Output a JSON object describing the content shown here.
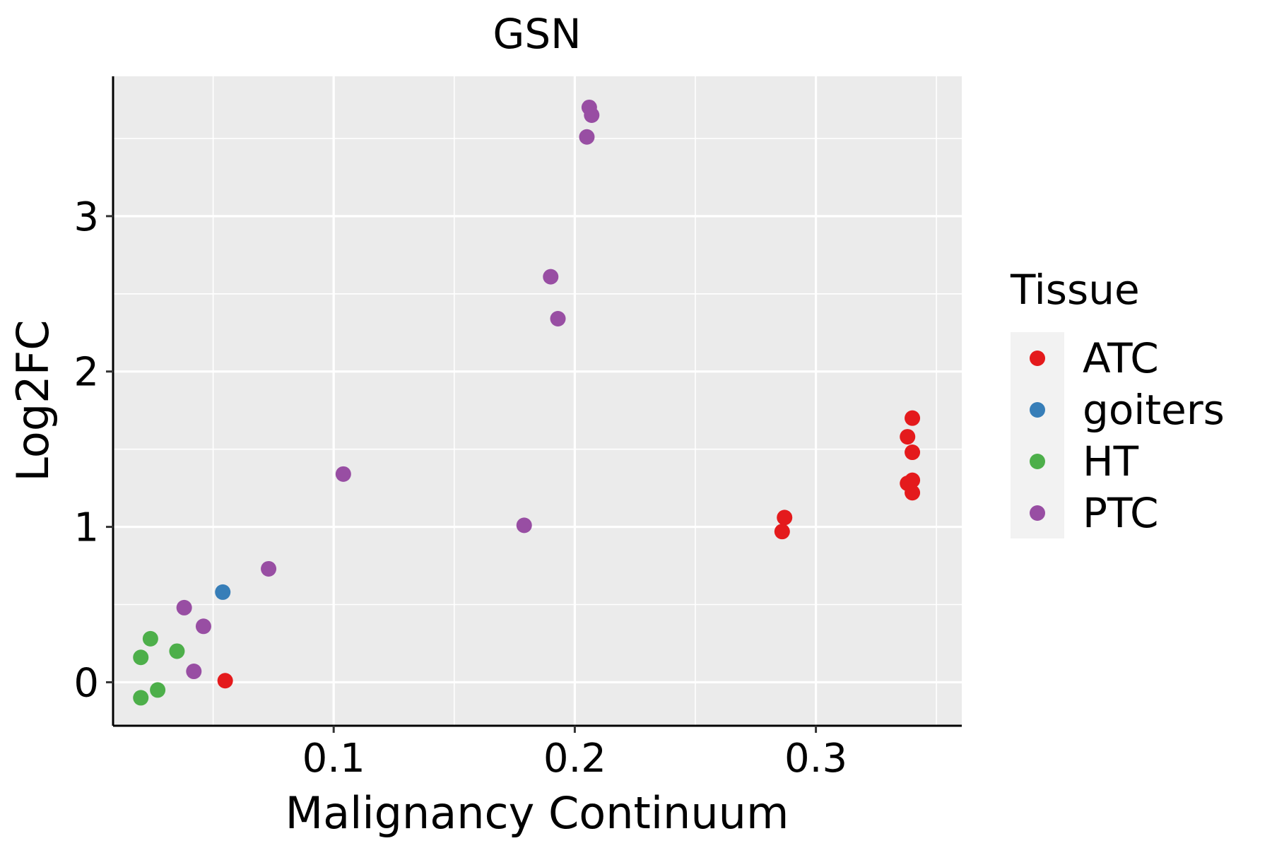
{
  "chart_data": {
    "type": "scatter",
    "title": "GSN",
    "xlabel": "Malignancy Continuum",
    "ylabel": "Log2FC",
    "xlim": [
      0.0085,
      0.3605
    ],
    "ylim": [
      -0.28,
      3.9
    ],
    "x_ticks": [
      0.1,
      0.2,
      0.3
    ],
    "x_tick_labels": [
      "0.1",
      "0.2",
      "0.3"
    ],
    "y_ticks": [
      0,
      1,
      2,
      3
    ],
    "y_tick_labels": [
      "0",
      "1",
      "2",
      "3"
    ],
    "x_minor": [
      0.05,
      0.15,
      0.25,
      0.35
    ],
    "y_minor": [
      0.5,
      1.5,
      2.5,
      3.5
    ],
    "grid": true,
    "legend": {
      "title": "Tissue",
      "position": "right",
      "entries": [
        {
          "name": "ATC",
          "color": "#E41A1C"
        },
        {
          "name": "goiters",
          "color": "#377EB8"
        },
        {
          "name": "HT",
          "color": "#4DAF4A"
        },
        {
          "name": "PTC",
          "color": "#984EA3"
        }
      ]
    },
    "series": [
      {
        "name": "ATC",
        "color": "#E41A1C",
        "points": [
          {
            "x": 0.055,
            "y": 0.01
          },
          {
            "x": 0.287,
            "y": 1.06
          },
          {
            "x": 0.286,
            "y": 0.97
          },
          {
            "x": 0.34,
            "y": 1.7
          },
          {
            "x": 0.338,
            "y": 1.58
          },
          {
            "x": 0.34,
            "y": 1.48
          },
          {
            "x": 0.34,
            "y": 1.3
          },
          {
            "x": 0.338,
            "y": 1.28
          },
          {
            "x": 0.34,
            "y": 1.22
          }
        ]
      },
      {
        "name": "goiters",
        "color": "#377EB8",
        "points": [
          {
            "x": 0.054,
            "y": 0.58
          }
        ]
      },
      {
        "name": "HT",
        "color": "#4DAF4A",
        "points": [
          {
            "x": 0.024,
            "y": 0.28
          },
          {
            "x": 0.02,
            "y": 0.16
          },
          {
            "x": 0.035,
            "y": 0.2
          },
          {
            "x": 0.027,
            "y": -0.05
          },
          {
            "x": 0.02,
            "y": -0.1
          }
        ]
      },
      {
        "name": "PTC",
        "color": "#984EA3",
        "points": [
          {
            "x": 0.206,
            "y": 3.7
          },
          {
            "x": 0.207,
            "y": 3.65
          },
          {
            "x": 0.205,
            "y": 3.51
          },
          {
            "x": 0.19,
            "y": 2.61
          },
          {
            "x": 0.193,
            "y": 2.34
          },
          {
            "x": 0.104,
            "y": 1.34
          },
          {
            "x": 0.179,
            "y": 1.01
          },
          {
            "x": 0.073,
            "y": 0.73
          },
          {
            "x": 0.038,
            "y": 0.48
          },
          {
            "x": 0.046,
            "y": 0.36
          },
          {
            "x": 0.042,
            "y": 0.07
          }
        ]
      }
    ]
  }
}
